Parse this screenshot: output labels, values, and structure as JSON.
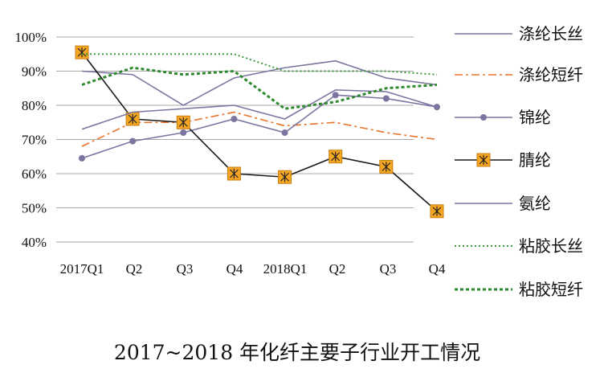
{
  "chart_data": {
    "type": "line",
    "title": "2017~2018 年化纤主要子行业开工情况",
    "xlabel": "",
    "ylabel": "",
    "categories": [
      "2017Q1",
      "Q2",
      "Q3",
      "Q4",
      "2018Q1",
      "Q2",
      "Q3",
      "Q4"
    ],
    "y_ticks": [
      "100%",
      "90%",
      "80%",
      "70%",
      "60%",
      "50%",
      "40%"
    ],
    "y_tick_values": [
      100,
      90,
      80,
      70,
      60,
      50,
      40
    ],
    "ylim": [
      40,
      100
    ],
    "grid": true,
    "legend_position": "right",
    "series": [
      {
        "name": "涤纶长丝",
        "values": [
          90,
          89,
          80,
          88,
          91,
          93,
          88,
          86
        ],
        "color": "#7b76a0",
        "style": "solid"
      },
      {
        "name": "涤纶短纤",
        "values": [
          68,
          75,
          75,
          78,
          74,
          75,
          72,
          70
        ],
        "color": "#e8732a",
        "style": "dashdot"
      },
      {
        "name": "锦纶",
        "values": [
          64.5,
          69.5,
          72,
          76,
          72,
          83,
          82,
          79.5
        ],
        "color": "#7b76a0",
        "style": "marker-dot"
      },
      {
        "name": "腈纶",
        "values": [
          95.5,
          76,
          75,
          60,
          59,
          65,
          62,
          49
        ],
        "color": "#1a1a1a",
        "marker_fill": "#f5a623",
        "style": "marker-square"
      },
      {
        "name": "氨纶",
        "values": [
          73,
          78,
          79,
          80,
          76,
          84.5,
          84,
          79.5
        ],
        "color": "#7b76a0",
        "style": "solid"
      },
      {
        "name": "粘胶长丝",
        "values": [
          95,
          95,
          95,
          95,
          90,
          90,
          90,
          89
        ],
        "color": "#3c9a3c",
        "style": "dotted"
      },
      {
        "name": "粘胶短纤",
        "values": [
          86,
          91,
          89,
          90,
          79,
          81,
          85,
          86
        ],
        "color": "#2f8a2f",
        "style": "dashed"
      }
    ]
  }
}
